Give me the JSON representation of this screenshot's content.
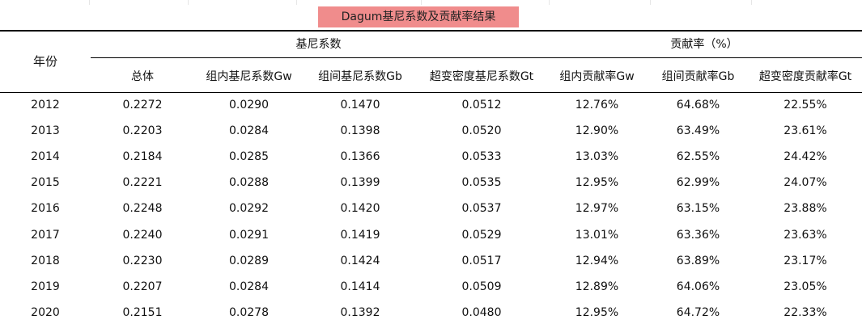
{
  "title": "Dagum基尼系数及贡献率结果",
  "header": {
    "year": "年份",
    "group_gini": "基尼系数",
    "group_contrib": "贡献率（%）",
    "columns": [
      "总体",
      "组内基尼系数Gw",
      "组间基尼系数Gb",
      "超变密度基尼系数Gt",
      "组内贡献率Gw",
      "组间贡献率Gb",
      "超变密度贡献率Gt"
    ]
  },
  "rows": [
    [
      "2012",
      "0.2272",
      "0.0290",
      "0.1470",
      "0.0512",
      "12.76%",
      "64.68%",
      "22.55%"
    ],
    [
      "2013",
      "0.2203",
      "0.0284",
      "0.1398",
      "0.0520",
      "12.90%",
      "63.49%",
      "23.61%"
    ],
    [
      "2014",
      "0.2184",
      "0.0285",
      "0.1366",
      "0.0533",
      "13.03%",
      "62.55%",
      "24.42%"
    ],
    [
      "2015",
      "0.2221",
      "0.0288",
      "0.1399",
      "0.0535",
      "12.95%",
      "62.99%",
      "24.07%"
    ],
    [
      "2016",
      "0.2248",
      "0.0292",
      "0.1420",
      "0.0537",
      "12.97%",
      "63.15%",
      "23.88%"
    ],
    [
      "2017",
      "0.2240",
      "0.0291",
      "0.1419",
      "0.0529",
      "13.01%",
      "63.36%",
      "23.63%"
    ],
    [
      "2018",
      "0.2230",
      "0.0289",
      "0.1424",
      "0.0517",
      "12.94%",
      "63.89%",
      "23.17%"
    ],
    [
      "2019",
      "0.2207",
      "0.0284",
      "0.1414",
      "0.0509",
      "12.89%",
      "64.06%",
      "23.05%"
    ],
    [
      "2020",
      "0.2151",
      "0.0278",
      "0.1392",
      "0.0480",
      "12.95%",
      "64.72%",
      "22.33%"
    ]
  ],
  "colors": {
    "title_background": "#f08c8c",
    "rule": "#000000",
    "text": "#111111"
  }
}
